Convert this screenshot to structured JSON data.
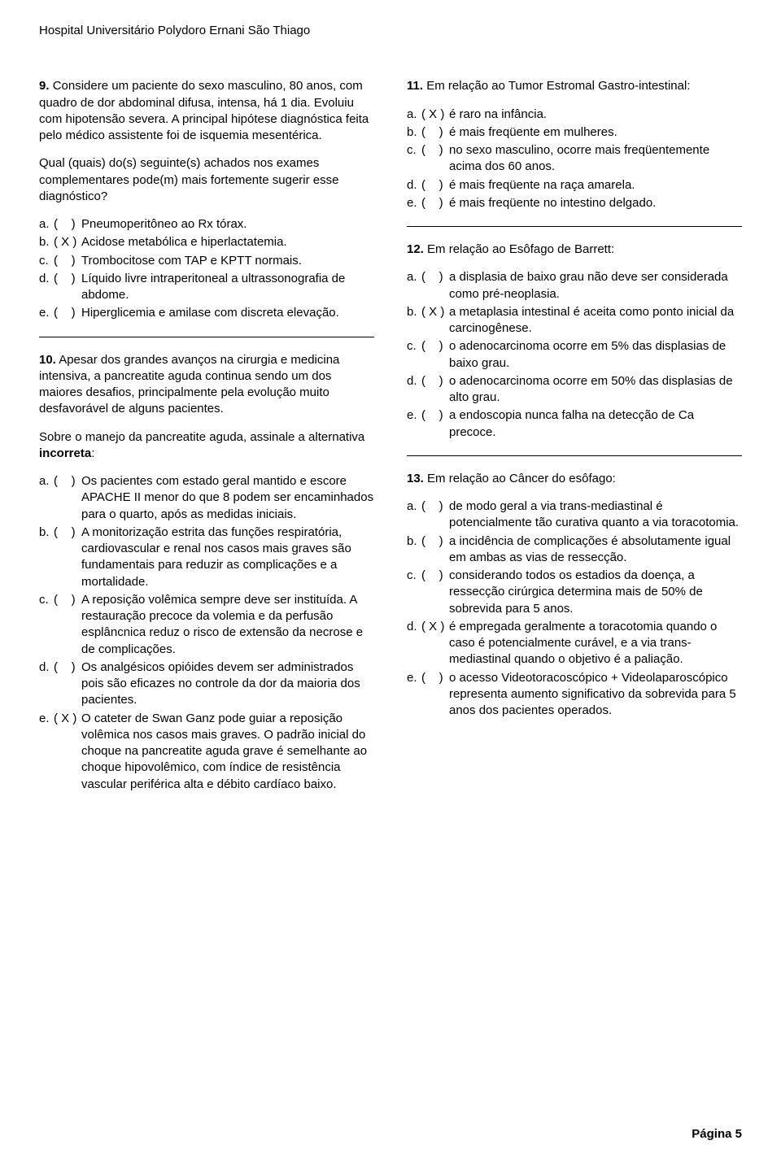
{
  "header": "Hospital Universitário Polydoro Ernani São Thiago",
  "footer": "Página 5",
  "left": {
    "q9": {
      "num": "9.",
      "text1": "Considere um paciente do sexo masculino, 80 anos, com quadro de dor abdominal difusa, intensa, há 1 dia. Evoluiu com hipotensão severa. A principal hipótese diagnóstica feita pelo médico assistente foi de isquemia mesentérica.",
      "text2": "Qual (quais) do(s) seguinte(s) achados nos exames complementares pode(m) mais fortemente sugerir esse diagnóstico?",
      "opts": [
        {
          "l": "a.",
          "m": "(    )",
          "t": "Pneumoperitôneo ao Rx tórax."
        },
        {
          "l": "b.",
          "m": "( X )",
          "t": "Acidose metabólica e hiperlactatemia."
        },
        {
          "l": "c.",
          "m": "(    )",
          "t": "Trombocitose com TAP e KPTT normais."
        },
        {
          "l": "d.",
          "m": "(    )",
          "t": "Líquido livre intraperitoneal a ultrassonografia de abdome."
        },
        {
          "l": "e.",
          "m": "(    )",
          "t": "Hiperglicemia e amilase com discreta elevação."
        }
      ]
    },
    "q10": {
      "num": "10.",
      "text1": "Apesar dos grandes avanços na cirurgia e medicina intensiva, a pancreatite aguda continua sendo um dos maiores desafios, principalmente pela evolução muito desfavorável de alguns pacientes.",
      "text2a": "Sobre o manejo da pancreatite aguda, assinale a alternativa ",
      "text2b": "incorreta",
      "text2c": ":",
      "opts": [
        {
          "l": "a.",
          "m": "(    )",
          "t": "Os pacientes com estado geral mantido e escore APACHE II menor do que 8 podem ser encaminhados para o quarto, após as medidas iniciais."
        },
        {
          "l": "b.",
          "m": "(    )",
          "t": "A monitorização estrita das funções respiratória, cardiovascular e renal nos casos mais graves são fundamentais para reduzir as complicações e a mortalidade."
        },
        {
          "l": "c.",
          "m": "(    )",
          "t": "A reposição volêmica sempre deve ser instituída. A restauração precoce da volemia e da perfusão esplâncnica reduz o risco de extensão da necrose e de complicações."
        },
        {
          "l": "d.",
          "m": "(    )",
          "t": "Os analgésicos opióides devem ser administrados pois são eficazes no controle da dor da maioria dos pacientes."
        },
        {
          "l": "e.",
          "m": "( X )",
          "t": "O cateter de Swan Ganz pode guiar a reposição volêmica nos casos mais graves. O padrão inicial do choque na pancreatite aguda grave é semelhante ao choque hipovolêmico, com índice de resistência vascular periférica alta e débito cardíaco baixo."
        }
      ]
    }
  },
  "right": {
    "q11": {
      "num": "11.",
      "text": "Em relação ao Tumor Estromal Gastro-intestinal:",
      "opts": [
        {
          "l": "a.",
          "m": "( X )",
          "t": "é raro na infância."
        },
        {
          "l": "b.",
          "m": "(    )",
          "t": "é mais freqüente em mulheres."
        },
        {
          "l": "c.",
          "m": "(    )",
          "t": "no sexo masculino, ocorre mais freqüentemente acima dos 60 anos."
        },
        {
          "l": "d.",
          "m": "(    )",
          "t": "é mais freqüente na raça amarela."
        },
        {
          "l": "e.",
          "m": "(    )",
          "t": "é mais freqüente no intestino delgado."
        }
      ]
    },
    "q12": {
      "num": "12.",
      "text": "Em relação ao Esôfago de Barrett:",
      "opts": [
        {
          "l": "a.",
          "m": "(    )",
          "t": "a displasia de baixo grau não deve ser considerada como pré-neoplasia."
        },
        {
          "l": "b.",
          "m": "( X )",
          "t": "a metaplasia intestinal é aceita como ponto inicial da carcinogênese."
        },
        {
          "l": "c.",
          "m": "(    )",
          "t": "o adenocarcinoma ocorre em 5% das displasias de baixo grau."
        },
        {
          "l": "d.",
          "m": "(    )",
          "t": "o adenocarcinoma ocorre em 50% das displasias de alto grau."
        },
        {
          "l": "e.",
          "m": "(    )",
          "t": "a endoscopia nunca falha na detecção de Ca precoce."
        }
      ]
    },
    "q13": {
      "num": "13.",
      "text": "Em relação ao Câncer do esôfago:",
      "opts": [
        {
          "l": "a.",
          "m": "(    )",
          "t": "de modo geral a via trans-mediastinal é potencialmente tão curativa quanto a via toracotomia."
        },
        {
          "l": "b.",
          "m": "(    )",
          "t": "a incidência de complicações é absolutamente igual em ambas as vias de ressecção."
        },
        {
          "l": "c.",
          "m": "(    )",
          "t": "considerando todos os estadios da doença, a ressecção cirúrgica determina mais de 50% de sobrevida para 5 anos."
        },
        {
          "l": "d.",
          "m": "( X )",
          "t": "é empregada geralmente a toracotomia quando o caso é potencialmente curável, e a via trans-mediastinal quando o objetivo é a paliação."
        },
        {
          "l": "e.",
          "m": "(    )",
          "t": "o acesso Videotoracoscópico + Videolaparoscópico representa aumento significativo da sobrevida para 5 anos dos pacientes operados."
        }
      ]
    }
  }
}
